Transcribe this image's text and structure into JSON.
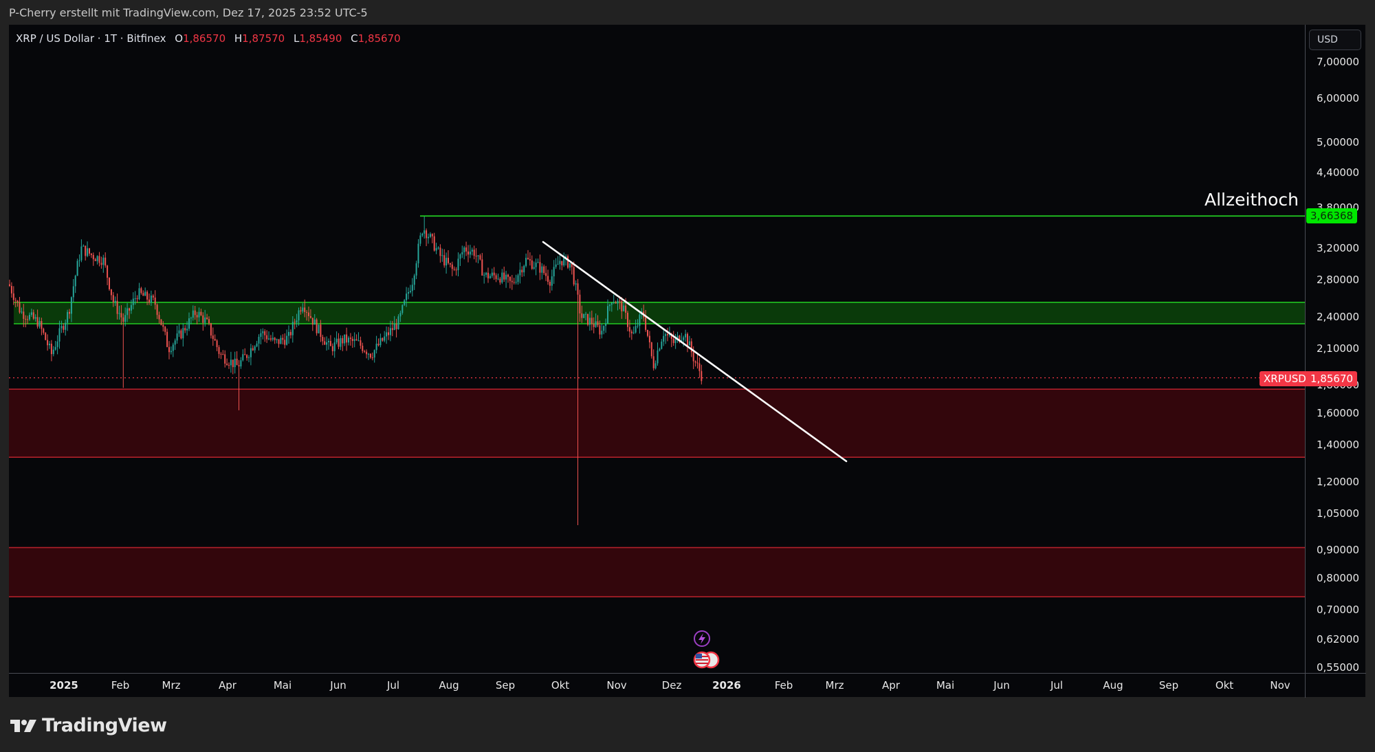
{
  "header": {
    "credit": "P-Cherry erstellt mit TradingView.com, Dez 17, 2025 23:52 UTC-5"
  },
  "legend": {
    "symbol": "XRP / US Dollar · 1T · Bitfinex",
    "open_label": "O",
    "open": "1,86570",
    "high_label": "H",
    "high": "1,87570",
    "low_label": "L",
    "low": "1,85490",
    "close_label": "C",
    "close": "1,85670"
  },
  "price_scale": {
    "currency": "USD",
    "ticks": [
      "7,00000",
      "6,00000",
      "5,00000",
      "4,40000",
      "3,80000",
      "3,20000",
      "2,80000",
      "2,40000",
      "2,10000",
      "1,80000",
      "1,60000",
      "1,40000",
      "1,20000",
      "1,05000",
      "0,90000",
      "0,80000",
      "0,70000",
      "0,62000",
      "0,55000"
    ],
    "ath_value": "3,66368",
    "current_symbol": "XRPUSD",
    "current_value": "1,85670"
  },
  "time_scale": {
    "labels": [
      "2025",
      "Feb",
      "Mrz",
      "Apr",
      "Mai",
      "Jun",
      "Jul",
      "Aug",
      "Sep",
      "Okt",
      "Nov",
      "Dez",
      "2026",
      "Feb",
      "Mrz",
      "Apr",
      "Mai",
      "Jun",
      "Jul",
      "Aug",
      "Sep",
      "Okt",
      "Nov"
    ],
    "bold": [
      "2025",
      "2026"
    ]
  },
  "annotations": {
    "ath_label": "Allzeithoch"
  },
  "colors": {
    "up": "#26a69a",
    "down": "#ef5350",
    "support_zone_fill": "#0a3a0a",
    "support_zone_line": "#22cc22",
    "demand_zone_fill": "#33060c",
    "demand_zone_line": "#b0202a",
    "ath_line": "#22cc22",
    "trendline": "#ffffff",
    "current_price": "#f23645"
  },
  "branding": {
    "logo_text": "TradingView"
  },
  "chart_data": {
    "type": "candlestick",
    "title": "XRP / US Dollar · 1T · Bitfinex",
    "scale": "log",
    "xlabel": "",
    "ylabel": "USD",
    "ylim": [
      0.55,
      7.0
    ],
    "x_ticks": [
      "2025",
      "Feb",
      "Mrz",
      "Apr",
      "Mai",
      "Jun",
      "Jul",
      "Aug",
      "Sep",
      "Okt",
      "Nov",
      "Dez",
      "2026",
      "Feb",
      "Mrz",
      "Apr",
      "Mai",
      "Jun",
      "Jul",
      "Aug",
      "Sep",
      "Okt",
      "Nov"
    ],
    "y_ticks": [
      7.0,
      6.0,
      5.0,
      4.4,
      3.8,
      3.2,
      2.8,
      2.4,
      2.1,
      1.8,
      1.6,
      1.4,
      1.2,
      1.05,
      0.9,
      0.8,
      0.7,
      0.62,
      0.55
    ],
    "last_bar": {
      "open": 1.8657,
      "high": 1.8757,
      "low": 1.8549,
      "close": 1.8567
    },
    "approx_closes_by_month": [
      {
        "month": "2025-01",
        "close": 3.1
      },
      {
        "month": "2025-02",
        "close": 2.15
      },
      {
        "month": "2025-03",
        "close": 2.08
      },
      {
        "month": "2025-04",
        "close": 2.25
      },
      {
        "month": "2025-05",
        "close": 2.15
      },
      {
        "month": "2025-06",
        "close": 2.25
      },
      {
        "month": "2025-07",
        "close": 3.05
      },
      {
        "month": "2025-08",
        "close": 2.8
      },
      {
        "month": "2025-09",
        "close": 2.85
      },
      {
        "month": "2025-10",
        "close": 2.55
      },
      {
        "month": "2025-11",
        "close": 2.2
      },
      {
        "month": "2025-12",
        "close": 1.8567
      }
    ],
    "notable_points": [
      {
        "label": "All-time high",
        "value": 3.66368,
        "date": "2025-07"
      },
      {
        "label": "Oct flash-crash wick low",
        "value": 1.0,
        "date": "2025-10"
      },
      {
        "label": "Apr wick low",
        "value": 1.62,
        "date": "2025-04"
      }
    ],
    "zones": [
      {
        "name": "support/resistance (green)",
        "low": 2.33,
        "high": 2.55
      },
      {
        "name": "demand zone 1 (red)",
        "low": 1.33,
        "high": 1.77
      },
      {
        "name": "demand zone 2 (red)",
        "low": 0.74,
        "high": 0.91
      }
    ],
    "lines": [
      {
        "name": "Allzeithoch",
        "type": "horizontal",
        "value": 3.66368
      },
      {
        "name": "descending trendline",
        "type": "trend",
        "from": {
          "date": "2025-09-25",
          "value": 3.3
        },
        "to": {
          "date": "2026-02-25",
          "value": 1.31
        }
      }
    ],
    "annotations": [
      "Allzeithoch"
    ]
  }
}
